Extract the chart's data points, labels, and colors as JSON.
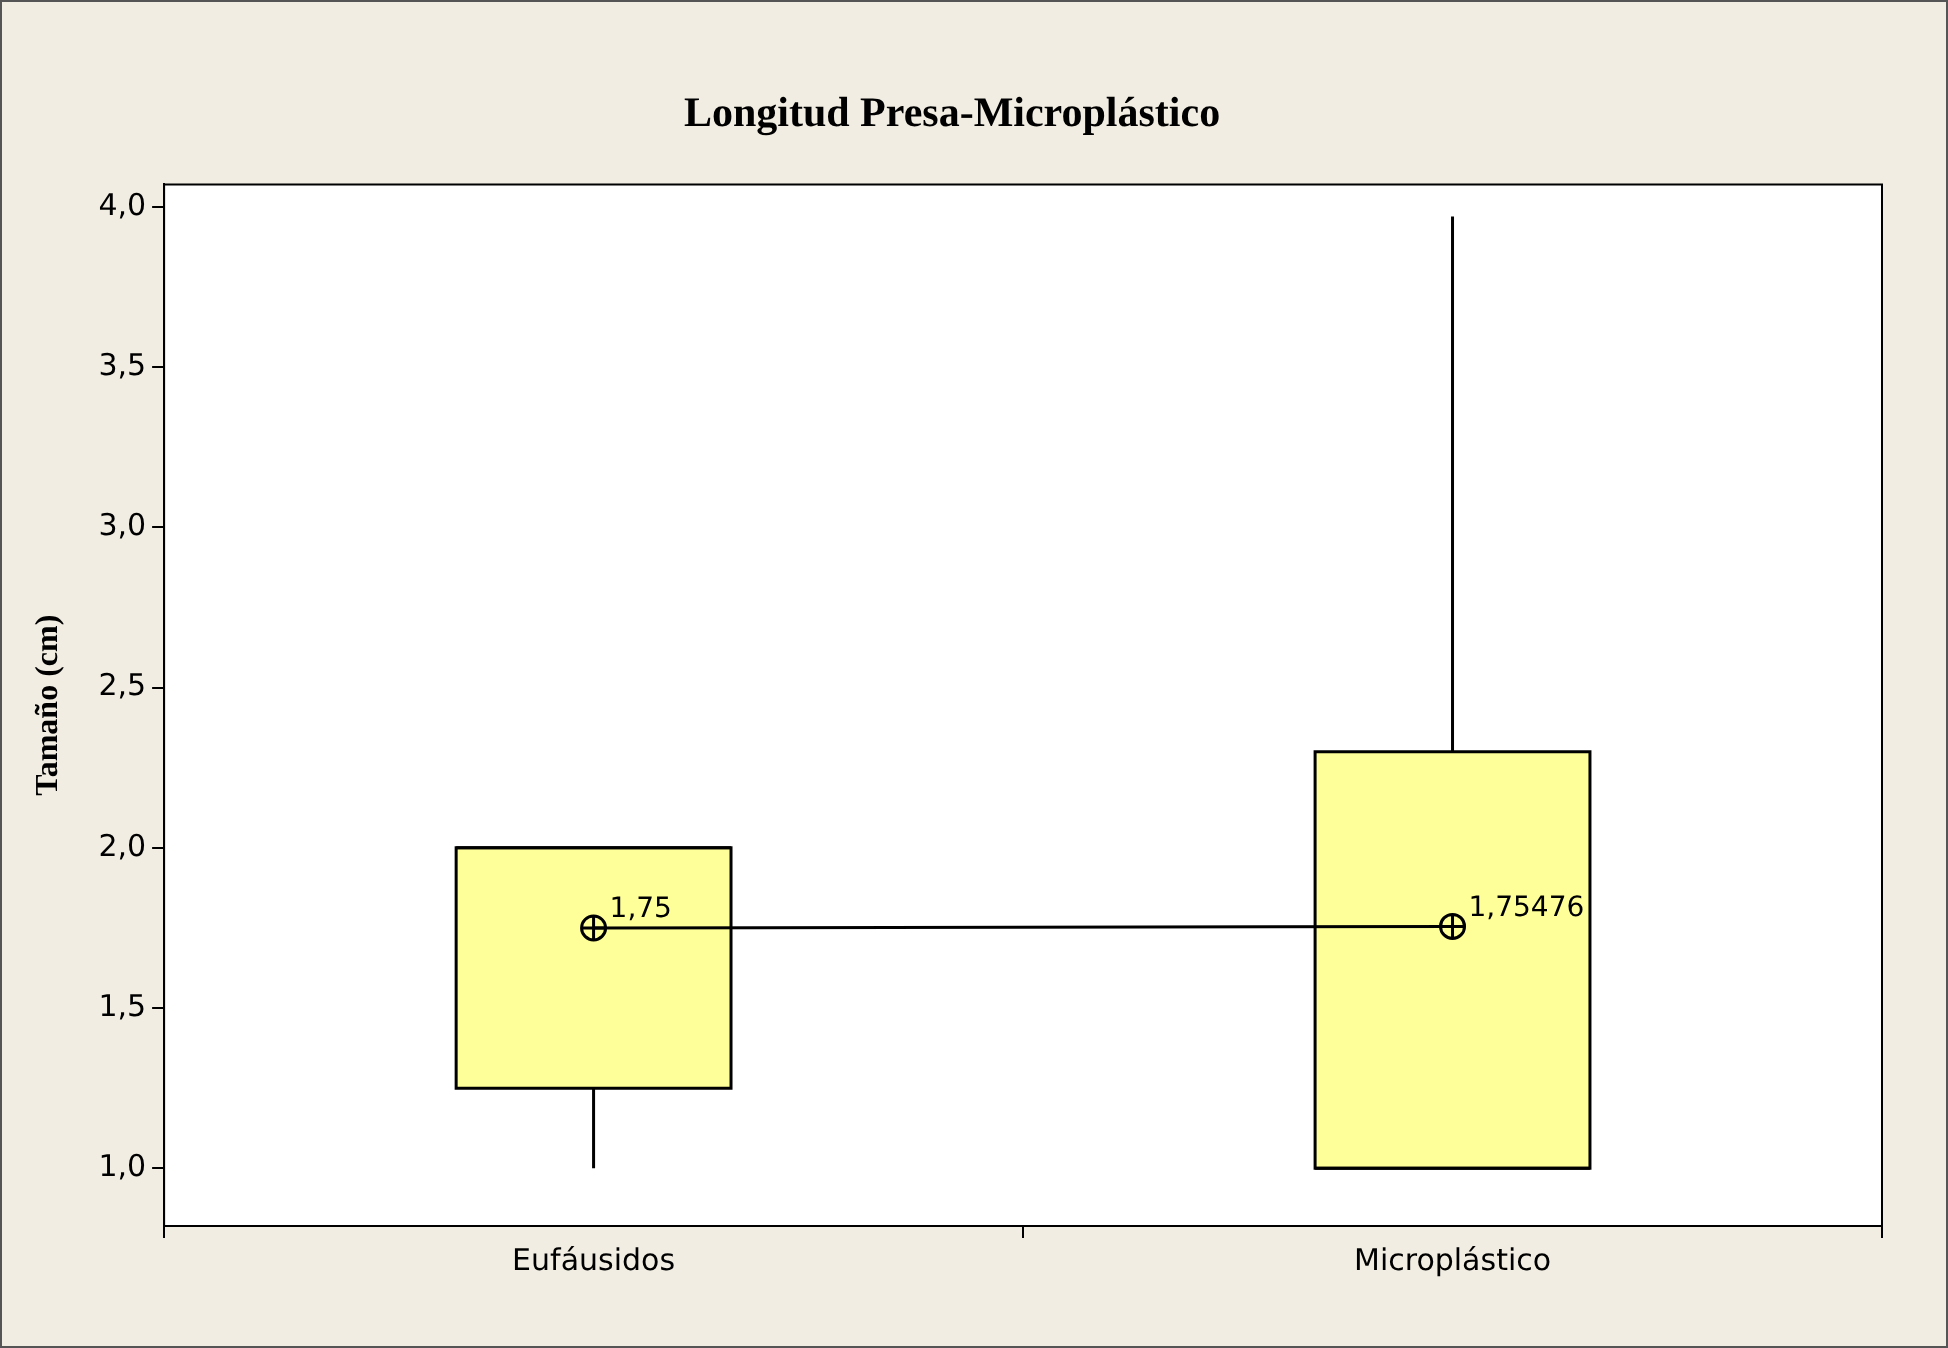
{
  "chart_data": {
    "type": "box",
    "title": "Longitud Presa-Microplástico",
    "ylabel": "Tamaño (cm)",
    "categories": [
      "Eufáusidos",
      "Microplástico"
    ],
    "series": [
      {
        "color": "#ffff99",
        "boxes": [
          {
            "low": 1.0,
            "q1": 1.25,
            "median": 2.0,
            "q3": 2.0,
            "high": 2.0
          },
          {
            "low": 1.0,
            "q1": 1.0,
            "median": 1.0,
            "q3": 2.3,
            "high": 3.97
          }
        ]
      },
      {
        "type": "line",
        "color": "#000000",
        "values": [
          1.75,
          1.75476
        ],
        "value_labels": [
          "1,75",
          "1,75476"
        ]
      }
    ],
    "marker": "circle",
    "grid": false,
    "legend": false,
    "ylim": [
      0.82,
      4.07
    ],
    "yticks": [
      {
        "value": 1,
        "label": "1,0"
      },
      {
        "value": 1.5,
        "label": "1,5"
      },
      {
        "value": 2,
        "label": "2,0"
      },
      {
        "value": 2.5,
        "label": "2,5"
      },
      {
        "value": 3,
        "label": "3,0"
      },
      {
        "value": 3.5,
        "label": "3,5"
      },
      {
        "value": 4,
        "label": "4,0"
      }
    ]
  }
}
